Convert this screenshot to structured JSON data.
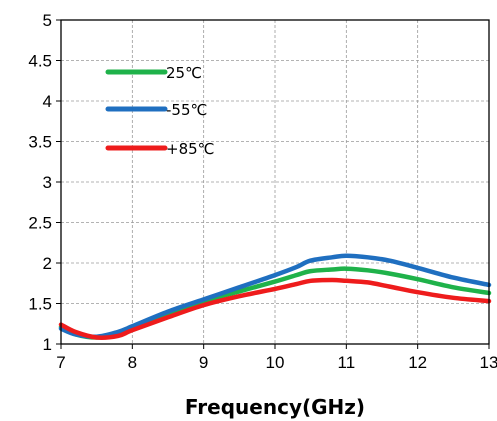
{
  "chart_data": {
    "type": "line",
    "title": "",
    "xlabel": "Frequency(GHz)",
    "ylabel": "",
    "xlim": [
      7,
      13
    ],
    "ylim": [
      1,
      5
    ],
    "xticks": [
      "7",
      "8",
      "9",
      "10",
      "11",
      "12",
      "13"
    ],
    "yticks": [
      "1",
      "1.5",
      "2",
      "2.5",
      "3",
      "3.5",
      "4",
      "4.5",
      "5"
    ],
    "grid": true,
    "legend_position": "top-left",
    "series": [
      {
        "name": "25℃",
        "color": "#1fb24a",
        "x": [
          7.0,
          7.2,
          7.5,
          7.8,
          8.0,
          8.5,
          9.0,
          9.5,
          10.0,
          10.3,
          10.5,
          10.8,
          11.0,
          11.3,
          11.6,
          12.0,
          12.5,
          13.0
        ],
        "y": [
          1.21,
          1.12,
          1.08,
          1.12,
          1.2,
          1.38,
          1.53,
          1.65,
          1.77,
          1.85,
          1.9,
          1.92,
          1.93,
          1.91,
          1.87,
          1.8,
          1.7,
          1.63
        ]
      },
      {
        "name": "-55℃",
        "color": "#1f6fc0",
        "x": [
          7.0,
          7.2,
          7.5,
          7.8,
          8.0,
          8.5,
          9.0,
          9.5,
          10.0,
          10.3,
          10.5,
          10.8,
          11.0,
          11.3,
          11.6,
          12.0,
          12.5,
          13.0
        ],
        "y": [
          1.19,
          1.12,
          1.09,
          1.15,
          1.22,
          1.4,
          1.55,
          1.7,
          1.85,
          1.95,
          2.03,
          2.07,
          2.09,
          2.07,
          2.03,
          1.94,
          1.82,
          1.73
        ]
      },
      {
        "name": "+85℃",
        "color": "#ee1c1c",
        "x": [
          7.0,
          7.2,
          7.5,
          7.8,
          8.0,
          8.5,
          9.0,
          9.5,
          10.0,
          10.3,
          10.5,
          10.8,
          11.0,
          11.3,
          11.6,
          12.0,
          12.5,
          13.0
        ],
        "y": [
          1.24,
          1.15,
          1.08,
          1.1,
          1.17,
          1.33,
          1.48,
          1.59,
          1.68,
          1.74,
          1.78,
          1.79,
          1.78,
          1.76,
          1.71,
          1.64,
          1.57,
          1.53
        ]
      }
    ]
  }
}
